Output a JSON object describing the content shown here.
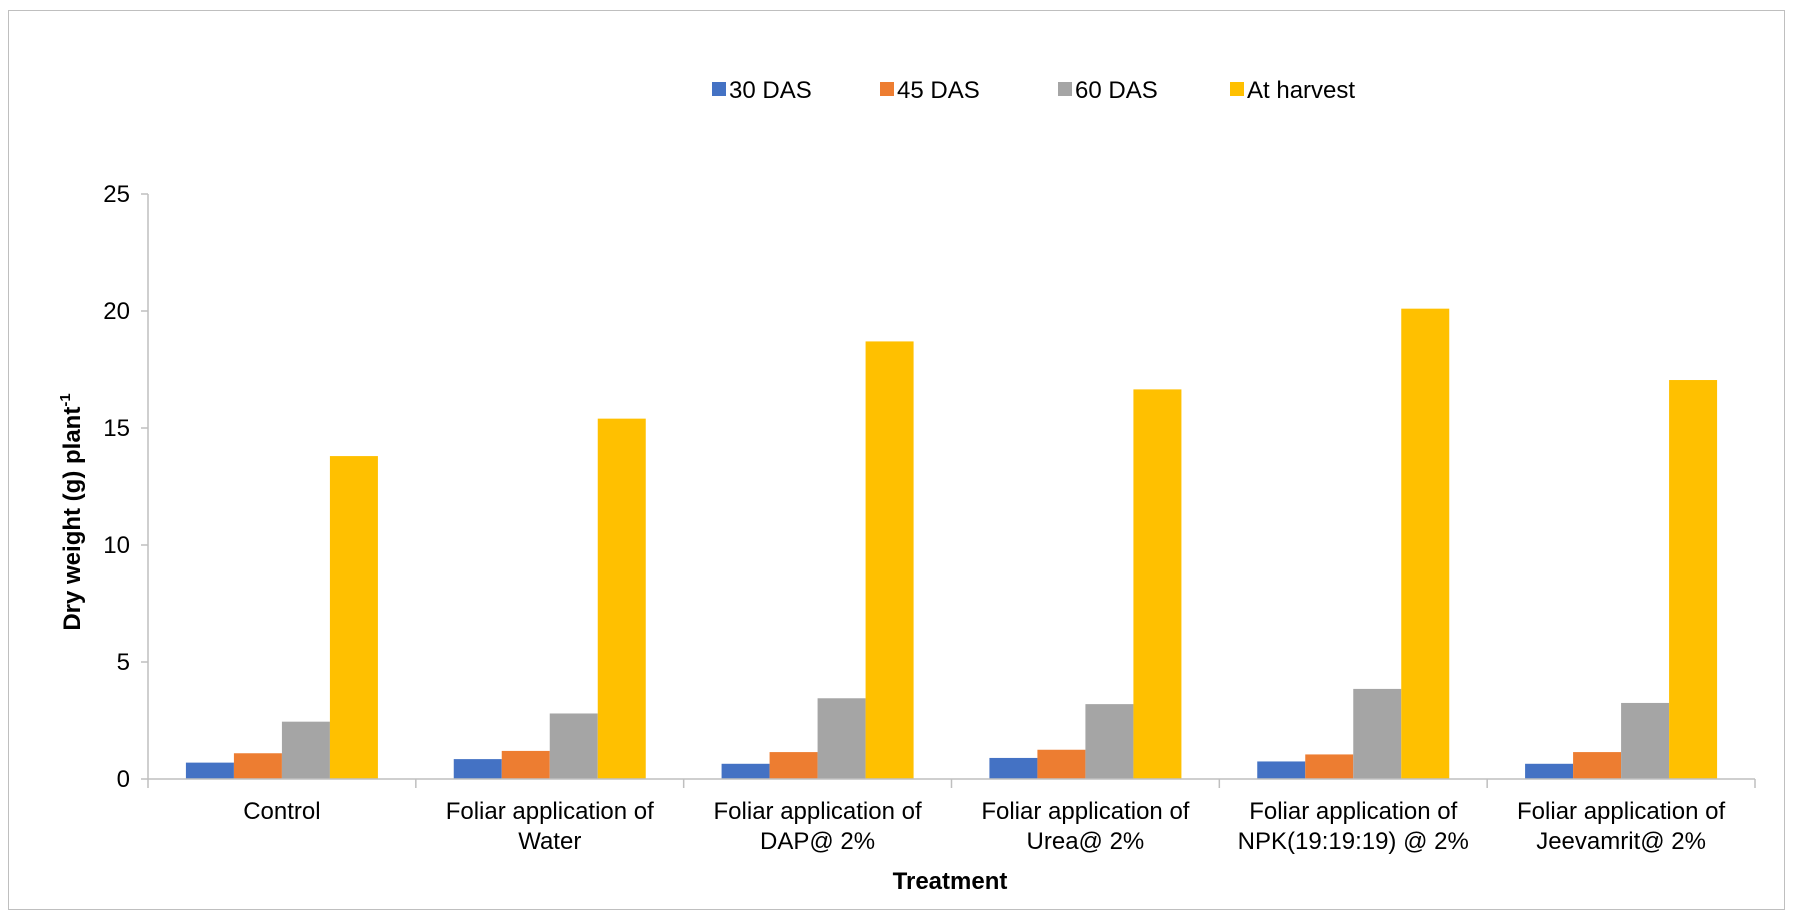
{
  "chart_data": {
    "type": "bar",
    "xlabel": "Treatment",
    "ylabel": "Dry weight (g) plant",
    "ylabel_superscript": "-1",
    "ylim": [
      0,
      25
    ],
    "yticks": [
      "0",
      "5",
      "10",
      "15",
      "20",
      "25"
    ],
    "grid": false,
    "legend_position": "top",
    "categories": [
      [
        "Control"
      ],
      [
        "Foliar application of",
        "Water"
      ],
      [
        "Foliar application of",
        "DAP@ 2%"
      ],
      [
        "Foliar application of",
        "Urea@ 2%"
      ],
      [
        "Foliar application of",
        "NPK(19:19:19) @ 2%"
      ],
      [
        "Foliar application of",
        "Jeevamrit@ 2%"
      ]
    ],
    "series": [
      {
        "name": "30 DAS",
        "color": "#4472c4",
        "values": [
          0.7,
          0.85,
          0.65,
          0.9,
          0.75,
          0.65
        ]
      },
      {
        "name": "45 DAS",
        "color": "#ed7d31",
        "values": [
          1.1,
          1.2,
          1.15,
          1.25,
          1.05,
          1.15
        ]
      },
      {
        "name": "60 DAS",
        "color": "#a5a5a5",
        "values": [
          2.45,
          2.8,
          3.45,
          3.2,
          3.85,
          3.25
        ]
      },
      {
        "name": "At harvest",
        "color": "#ffc000",
        "values": [
          13.8,
          15.4,
          18.7,
          16.65,
          20.1,
          17.05
        ]
      }
    ]
  }
}
